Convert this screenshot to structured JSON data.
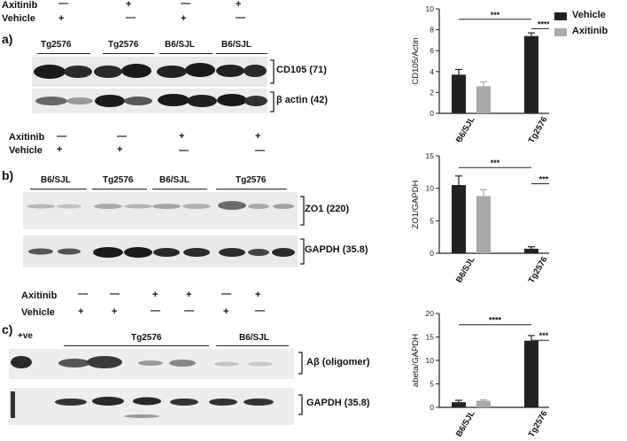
{
  "legend": {
    "items": [
      {
        "label": "Vehicle",
        "color": "#222222"
      },
      {
        "label": "Axitinib",
        "color": "#a9a9a9"
      }
    ]
  },
  "panels": {
    "a": {
      "letter": "a)",
      "treat_rows": [
        {
          "label": "Axitinib",
          "marks": [
            "—",
            "+",
            "—",
            "+"
          ]
        },
        {
          "label": "Vehicle",
          "marks": [
            "+",
            "—",
            "+",
            "—"
          ]
        }
      ],
      "groups": [
        "Tg2576",
        "Tg2576",
        "B6/SJL",
        "B6/SJL"
      ],
      "bands": [
        "CD105 (71)",
        "β actin (42)"
      ]
    },
    "b": {
      "letter": "b)",
      "treat_rows": [
        {
          "label": "Axitinib",
          "marks": [
            "—",
            "—",
            "+",
            "+"
          ]
        },
        {
          "label": "Vehicle",
          "marks": [
            "+",
            "+",
            "—",
            "—"
          ]
        }
      ],
      "groups": [
        "B6/SJL",
        "Tg2576",
        "B6/SJL",
        "Tg2576"
      ],
      "bands": [
        "ZO1 (220)",
        "GAPDH (35.8)"
      ]
    },
    "c": {
      "letter": "c)",
      "treat_rows": [
        {
          "label": "Axitinib",
          "marks": [
            "—",
            "—",
            "+",
            "+",
            "—",
            "+"
          ]
        },
        {
          "label": "Vehicle",
          "marks": [
            "+",
            "+",
            "—",
            "—",
            "+",
            "—"
          ]
        }
      ],
      "positive": "+ve",
      "groups": [
        "Tg2576",
        "B6/SJL"
      ],
      "bands": [
        "Aβ (oligomer)",
        "GAPDH (35.8)"
      ]
    }
  },
  "chart_data": [
    {
      "type": "bar",
      "ylabel": "CD105/Actin",
      "ylim": [
        0,
        10
      ],
      "yticks": [
        0,
        2,
        4,
        6,
        8,
        10
      ],
      "categories": [
        "B6/SJL",
        "Tg2576"
      ],
      "series": [
        {
          "name": "Vehicle",
          "values": [
            3.7,
            7.4
          ],
          "errors": [
            0.5,
            0.3
          ],
          "color": "#222222"
        },
        {
          "name": "Axitinib",
          "values": [
            2.6,
            3.7
          ],
          "errors": [
            0.4,
            0.3
          ],
          "color": "#a9a9a9"
        }
      ],
      "annotations": [
        {
          "from": "B6/SJL:Vehicle",
          "to": "Tg2576:Vehicle",
          "text": "***",
          "level": 9.0
        },
        {
          "from": "Tg2576:Vehicle",
          "to": "Tg2576:Axitinib",
          "text": "****",
          "level": 8.1
        }
      ]
    },
    {
      "type": "bar",
      "ylabel": "ZO1/GAPDH",
      "ylim": [
        0,
        15
      ],
      "yticks": [
        0,
        5,
        10,
        15
      ],
      "categories": [
        "B6/SJL",
        "Tg2576"
      ],
      "series": [
        {
          "name": "Vehicle",
          "values": [
            10.5,
            0.7
          ],
          "errors": [
            1.4,
            0.3
          ],
          "color": "#222222"
        },
        {
          "name": "Axitinib",
          "values": [
            8.8,
            8.3
          ],
          "errors": [
            1.0,
            1.1
          ],
          "color": "#a9a9a9"
        }
      ],
      "annotations": [
        {
          "from": "B6/SJL:Vehicle",
          "to": "Tg2576:Vehicle",
          "text": "***",
          "level": 13.2
        },
        {
          "from": "Tg2576:Vehicle",
          "to": "Tg2576:Axitinib",
          "text": "***",
          "level": 10.7
        }
      ]
    },
    {
      "type": "bar",
      "ylabel": "abeta/GAPDH",
      "ylim": [
        0,
        20
      ],
      "yticks": [
        0,
        5,
        10,
        15,
        20
      ],
      "categories": [
        "B6/SJL",
        "Tg2576"
      ],
      "series": [
        {
          "name": "Vehicle",
          "values": [
            1.1,
            14.2
          ],
          "errors": [
            0.4,
            1.1
          ],
          "color": "#222222"
        },
        {
          "name": "Axitinib",
          "values": [
            1.4,
            3.7
          ],
          "errors": [
            0.2,
            1.7
          ],
          "color": "#a9a9a9"
        }
      ],
      "annotations": [
        {
          "from": "B6/SJL:Vehicle",
          "to": "Tg2576:Vehicle",
          "text": "****",
          "level": 17.6
        },
        {
          "from": "Tg2576:Vehicle",
          "to": "Tg2576:Axitinib",
          "text": "***",
          "level": 14.3
        }
      ]
    }
  ]
}
